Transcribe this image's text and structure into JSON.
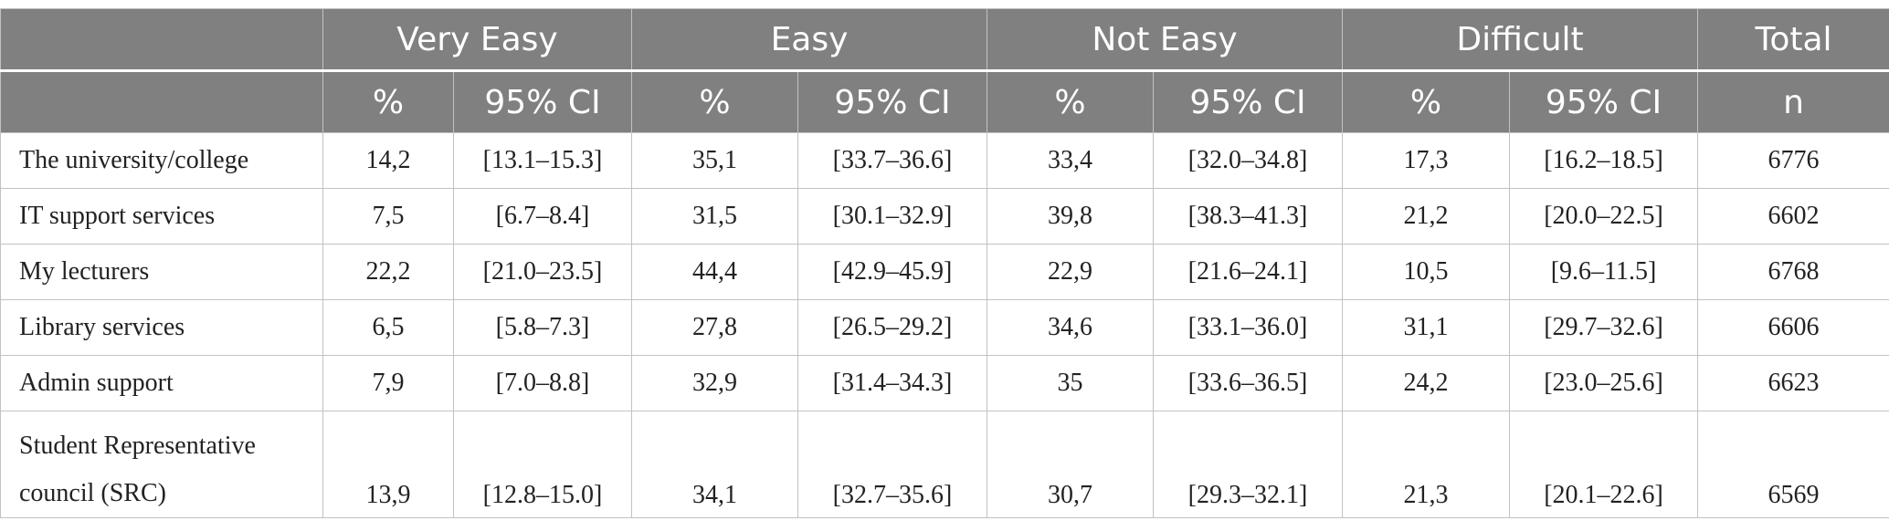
{
  "table": {
    "group_headers": [
      "Very Easy",
      "Easy",
      "Not Easy",
      "Difficult",
      "Total"
    ],
    "sub_headers": [
      "%",
      "95% CI",
      "%",
      "95% CI",
      "%",
      "95% CI",
      "%",
      "95% CI",
      "n"
    ],
    "rows": [
      {
        "label": "The university/college",
        "cells": [
          "14,2",
          "[13.1–15.3]",
          "35,1",
          "[33.7–36.6]",
          "33,4",
          "[32.0–34.8]",
          "17,3",
          "[16.2–18.5]",
          "6776"
        ]
      },
      {
        "label": "IT support services",
        "cells": [
          "7,5",
          "[6.7–8.4]",
          "31,5",
          "[30.1–32.9]",
          "39,8",
          "[38.3–41.3]",
          "21,2",
          "[20.0–22.5]",
          "6602"
        ]
      },
      {
        "label": "My lecturers",
        "cells": [
          "22,2",
          "[21.0–23.5]",
          "44,4",
          "[42.9–45.9]",
          "22,9",
          "[21.6–24.1]",
          "10,5",
          "[9.6–11.5]",
          "6768"
        ]
      },
      {
        "label": "Library services",
        "cells": [
          "6,5",
          "[5.8–7.3]",
          "27,8",
          "[26.5–29.2]",
          "34,6",
          "[33.1–36.0]",
          "31,1",
          "[29.7–32.6]",
          "6606"
        ]
      },
      {
        "label": "Admin support",
        "cells": [
          "7,9",
          "[7.0–8.8]",
          "32,9",
          "[31.4–34.3]",
          "35",
          "[33.6–36.5]",
          "24,2",
          "[23.0–25.6]",
          "6623"
        ]
      },
      {
        "label": "Student Representative council (SRC)",
        "cells": [
          "13,9",
          "[12.8–15.0]",
          "34,1",
          "[32.7–35.6]",
          "30,7",
          "[29.3–32.1]",
          "21,3",
          "[20.1–22.6]",
          "6569"
        ]
      }
    ]
  },
  "colors": {
    "header_background": "#808080",
    "header_text": "#ffffff",
    "border": "#c2c2c2"
  }
}
